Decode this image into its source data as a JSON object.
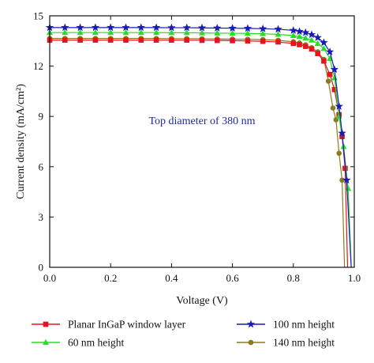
{
  "chart_data": {
    "type": "line",
    "xlabel": "Voltage (V)",
    "ylabel": "Current density (mA/cm²)",
    "xlim": [
      0,
      1.0
    ],
    "ylim": [
      0,
      15
    ],
    "xticks": [
      "0.0",
      "0.2",
      "0.4",
      "0.6",
      "0.8",
      "1.0"
    ],
    "yticks": [
      "0",
      "3",
      "6",
      "9",
      "12",
      "15"
    ],
    "grid": false,
    "legend_position": "bottom",
    "annotation": "Top diameter of 380 nm",
    "series": [
      {
        "name": "Planar InGaP window layer",
        "color": "#e8141c",
        "marker": "square",
        "x": [
          0.0,
          0.05,
          0.1,
          0.15,
          0.2,
          0.25,
          0.3,
          0.35,
          0.4,
          0.45,
          0.5,
          0.55,
          0.6,
          0.65,
          0.7,
          0.75,
          0.8,
          0.82,
          0.84,
          0.86,
          0.88,
          0.9,
          0.92,
          0.935,
          0.95,
          0.96,
          0.97,
          0.978
        ],
        "y": [
          13.55,
          13.55,
          13.55,
          13.55,
          13.55,
          13.55,
          13.55,
          13.55,
          13.55,
          13.55,
          13.54,
          13.53,
          13.52,
          13.5,
          13.48,
          13.44,
          13.35,
          13.28,
          13.18,
          13.02,
          12.75,
          12.3,
          11.5,
          10.6,
          9.1,
          7.8,
          5.9,
          0.0
        ]
      },
      {
        "name": "100 nm height",
        "color": "#1a1ab4",
        "marker": "star",
        "x": [
          0.0,
          0.05,
          0.1,
          0.15,
          0.2,
          0.25,
          0.3,
          0.35,
          0.4,
          0.45,
          0.5,
          0.55,
          0.6,
          0.65,
          0.7,
          0.75,
          0.8,
          0.82,
          0.84,
          0.86,
          0.88,
          0.9,
          0.92,
          0.935,
          0.95,
          0.96,
          0.975,
          0.99
        ],
        "y": [
          14.3,
          14.3,
          14.3,
          14.3,
          14.3,
          14.3,
          14.3,
          14.3,
          14.29,
          14.29,
          14.28,
          14.27,
          14.26,
          14.25,
          14.23,
          14.2,
          14.13,
          14.07,
          14.0,
          13.88,
          13.7,
          13.4,
          12.85,
          11.8,
          9.6,
          8.0,
          5.2,
          0.0
        ]
      },
      {
        "name": "60 nm height",
        "color": "#22e022",
        "marker": "triangle",
        "x": [
          0.0,
          0.05,
          0.1,
          0.15,
          0.2,
          0.25,
          0.3,
          0.35,
          0.4,
          0.45,
          0.5,
          0.55,
          0.6,
          0.65,
          0.7,
          0.75,
          0.8,
          0.82,
          0.84,
          0.86,
          0.88,
          0.9,
          0.92,
          0.935,
          0.95,
          0.965,
          0.98,
          0.99
        ],
        "y": [
          14.0,
          14.0,
          14.0,
          14.0,
          14.0,
          14.0,
          14.0,
          14.0,
          13.99,
          13.99,
          13.98,
          13.97,
          13.96,
          13.95,
          13.93,
          13.89,
          13.82,
          13.76,
          13.67,
          13.55,
          13.35,
          13.05,
          12.45,
          11.3,
          9.0,
          7.2,
          4.7,
          0.0
        ]
      },
      {
        "name": "140 nm height",
        "color": "#8b7a1f",
        "marker": "circle",
        "x": [
          0.0,
          0.05,
          0.1,
          0.15,
          0.2,
          0.25,
          0.3,
          0.35,
          0.4,
          0.45,
          0.5,
          0.55,
          0.6,
          0.65,
          0.7,
          0.75,
          0.8,
          0.82,
          0.84,
          0.86,
          0.88,
          0.9,
          0.915,
          0.93,
          0.94,
          0.95,
          0.96,
          0.968
        ],
        "y": [
          13.65,
          13.65,
          13.65,
          13.65,
          13.65,
          13.65,
          13.65,
          13.65,
          13.64,
          13.64,
          13.63,
          13.62,
          13.61,
          13.6,
          13.58,
          13.54,
          13.45,
          13.38,
          13.27,
          13.1,
          12.85,
          12.4,
          11.1,
          9.5,
          8.8,
          6.8,
          5.2,
          0.0
        ]
      }
    ]
  }
}
